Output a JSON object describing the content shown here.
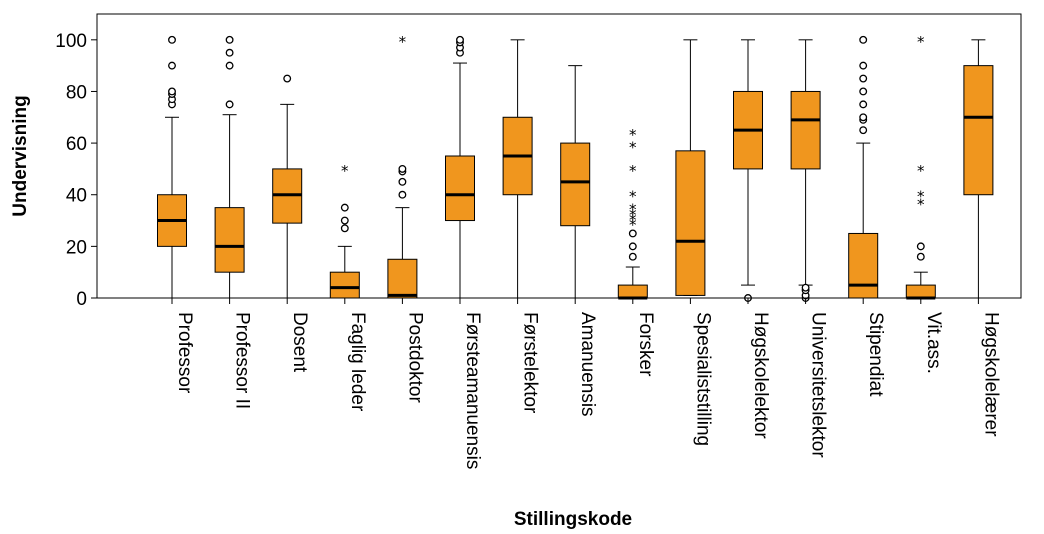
{
  "chart_data": {
    "type": "boxplot",
    "xlabel": "Stillingskode",
    "ylabel": "Undervisning",
    "ylim": [
      0,
      110
    ],
    "yticks": [
      0,
      20,
      40,
      60,
      80,
      100
    ],
    "grid": false,
    "box_color": "#f0961e",
    "categories": [
      "Professor",
      "Professor II",
      "Dosent",
      "Faglig leder",
      "Postdoktor",
      "Førsteamanuensis",
      "Førstelektor",
      "Amanuensis",
      "Forsker",
      "Spesialiststilling",
      "Høgskolelektor",
      "Universitetslektor",
      "Stipendiat",
      "Vit.ass.",
      "Høgskolelærer"
    ],
    "series": [
      {
        "whisker_low": 0,
        "q1": 20,
        "median": 30,
        "q3": 40,
        "whisker_high": 70,
        "outliers": [
          75,
          77,
          79,
          80,
          90,
          100
        ],
        "extremes": []
      },
      {
        "whisker_low": 0,
        "q1": 10,
        "median": 20,
        "q3": 35,
        "whisker_high": 71,
        "outliers": [
          75,
          90,
          95,
          100
        ],
        "extremes": []
      },
      {
        "whisker_low": 0,
        "q1": 29,
        "median": 40,
        "q3": 50,
        "whisker_high": 75,
        "outliers": [
          85
        ],
        "extremes": []
      },
      {
        "whisker_low": 0,
        "q1": 0,
        "median": 4,
        "q3": 10,
        "whisker_high": 20,
        "outliers": [
          27,
          30,
          35
        ],
        "extremes": [
          50
        ]
      },
      {
        "whisker_low": 0,
        "q1": 0,
        "median": 1,
        "q3": 15,
        "whisker_high": 35,
        "outliers": [
          40,
          45,
          49,
          50
        ],
        "extremes": [
          100
        ]
      },
      {
        "whisker_low": 0,
        "q1": 30,
        "median": 40,
        "q3": 55,
        "whisker_high": 91,
        "outliers": [
          95,
          97,
          99,
          100
        ],
        "extremes": []
      },
      {
        "whisker_low": 0,
        "q1": 40,
        "median": 55,
        "q3": 70,
        "whisker_high": 100,
        "outliers": [],
        "extremes": []
      },
      {
        "whisker_low": 0,
        "q1": 28,
        "median": 45,
        "q3": 60,
        "whisker_high": 90,
        "outliers": [],
        "extremes": []
      },
      {
        "whisker_low": 0,
        "q1": 0,
        "median": 0,
        "q3": 5,
        "whisker_high": 12,
        "outliers": [
          16,
          20,
          25
        ],
        "extremes": [
          29,
          31,
          33,
          35,
          40,
          50,
          59,
          64
        ]
      },
      {
        "whisker_low": 1,
        "q1": 1,
        "median": 22,
        "q3": 57,
        "whisker_high": 100,
        "outliers": [],
        "extremes": []
      },
      {
        "whisker_low": 5,
        "q1": 50,
        "median": 65,
        "q3": 80,
        "whisker_high": 100,
        "outliers": [
          0
        ],
        "extremes": []
      },
      {
        "whisker_low": 5,
        "q1": 50,
        "median": 69,
        "q3": 80,
        "whisker_high": 100,
        "outliers": [
          0,
          1,
          3,
          4
        ],
        "extremes": []
      },
      {
        "whisker_low": 0,
        "q1": 0,
        "median": 5,
        "q3": 25,
        "whisker_high": 60,
        "outliers": [
          65,
          69,
          70,
          75,
          80,
          85,
          90,
          100
        ],
        "extremes": []
      },
      {
        "whisker_low": 0,
        "q1": 0,
        "median": 0,
        "q3": 5,
        "whisker_high": 10,
        "outliers": [
          16,
          20
        ],
        "extremes": [
          37,
          40,
          50,
          100
        ]
      },
      {
        "whisker_low": 0,
        "q1": 40,
        "median": 70,
        "q3": 90,
        "whisker_high": 100,
        "outliers": [],
        "extremes": []
      }
    ]
  }
}
